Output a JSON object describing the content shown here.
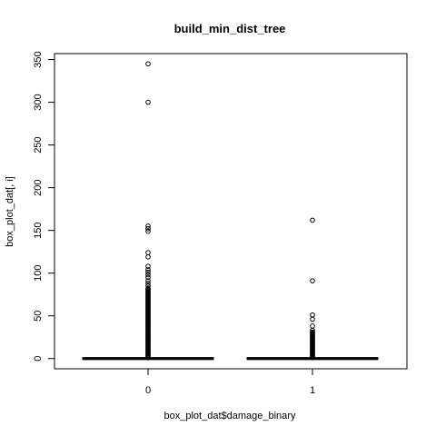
{
  "chart_data": {
    "type": "boxplot",
    "title": "build_min_dist_tree",
    "xlabel": "box_plot_dat$damage_binary",
    "ylabel": "box_plot_dat[, i]",
    "categories": [
      "0",
      "1"
    ],
    "ylim": [
      -12,
      357
    ],
    "yticks": [
      0,
      50,
      100,
      150,
      200,
      250,
      300,
      350
    ],
    "grid": false,
    "legend": "none",
    "boxes": [
      {
        "category": "0",
        "min": 0,
        "q1": 0,
        "median": 0,
        "q3": 0,
        "max": 0,
        "outliers": [
          345,
          300,
          155,
          152,
          149,
          124,
          119,
          108,
          104,
          101,
          98,
          95,
          91,
          88,
          85,
          82,
          81,
          80,
          79,
          78,
          77,
          76,
          75,
          74,
          73,
          72,
          71,
          70,
          69,
          68,
          67,
          66,
          65,
          64,
          63,
          62,
          61,
          60,
          59,
          58,
          57,
          56,
          55,
          54,
          53,
          52,
          51,
          50,
          49,
          48,
          47,
          46,
          45,
          44,
          43,
          42,
          41,
          40,
          39,
          38,
          37,
          36,
          35,
          34,
          33,
          32,
          31,
          30,
          29,
          28,
          27,
          26,
          25,
          24,
          23,
          22,
          21,
          20,
          19,
          18,
          17,
          16,
          15,
          14,
          13,
          12,
          11,
          10,
          9,
          8,
          7,
          6,
          5,
          4,
          3,
          2,
          1
        ]
      },
      {
        "category": "1",
        "min": 0,
        "q1": 0,
        "median": 0,
        "q3": 0,
        "max": 0,
        "outliers": [
          162,
          91,
          51,
          46,
          38,
          33,
          31,
          30,
          29,
          28,
          27,
          26,
          25,
          24,
          23,
          22,
          21,
          20,
          19,
          18,
          17,
          16,
          15,
          14,
          13,
          12,
          11,
          10,
          9,
          8,
          7,
          6,
          5,
          4,
          3,
          2,
          1
        ]
      }
    ]
  }
}
